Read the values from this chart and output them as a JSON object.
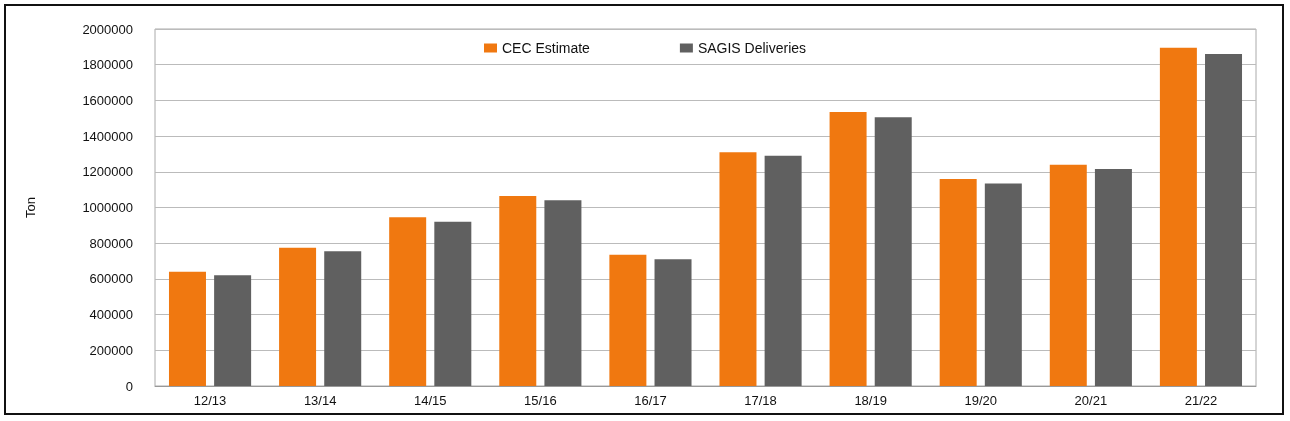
{
  "chart_data": {
    "type": "bar",
    "ylabel": "Ton",
    "categories": [
      "12/13",
      "13/14",
      "14/15",
      "15/16",
      "16/17",
      "17/18",
      "18/19",
      "19/20",
      "20/21",
      "21/22"
    ],
    "series": [
      {
        "name": "CEC Estimate",
        "color": "#f07810",
        "values": [
          640000,
          775000,
          945000,
          1065000,
          735000,
          1310000,
          1535000,
          1160000,
          1240000,
          1895000
        ]
      },
      {
        "name": "SAGIS Deliveries",
        "color": "#606060",
        "values": [
          620000,
          755000,
          920000,
          1040000,
          710000,
          1290000,
          1505000,
          1135000,
          1215000,
          1860000
        ]
      }
    ],
    "ylim": [
      0,
      2000000
    ],
    "yticks": [
      0,
      200000,
      400000,
      600000,
      800000,
      1000000,
      1200000,
      1400000,
      1600000,
      1800000,
      2000000
    ],
    "grid": "y",
    "legend": "top"
  }
}
